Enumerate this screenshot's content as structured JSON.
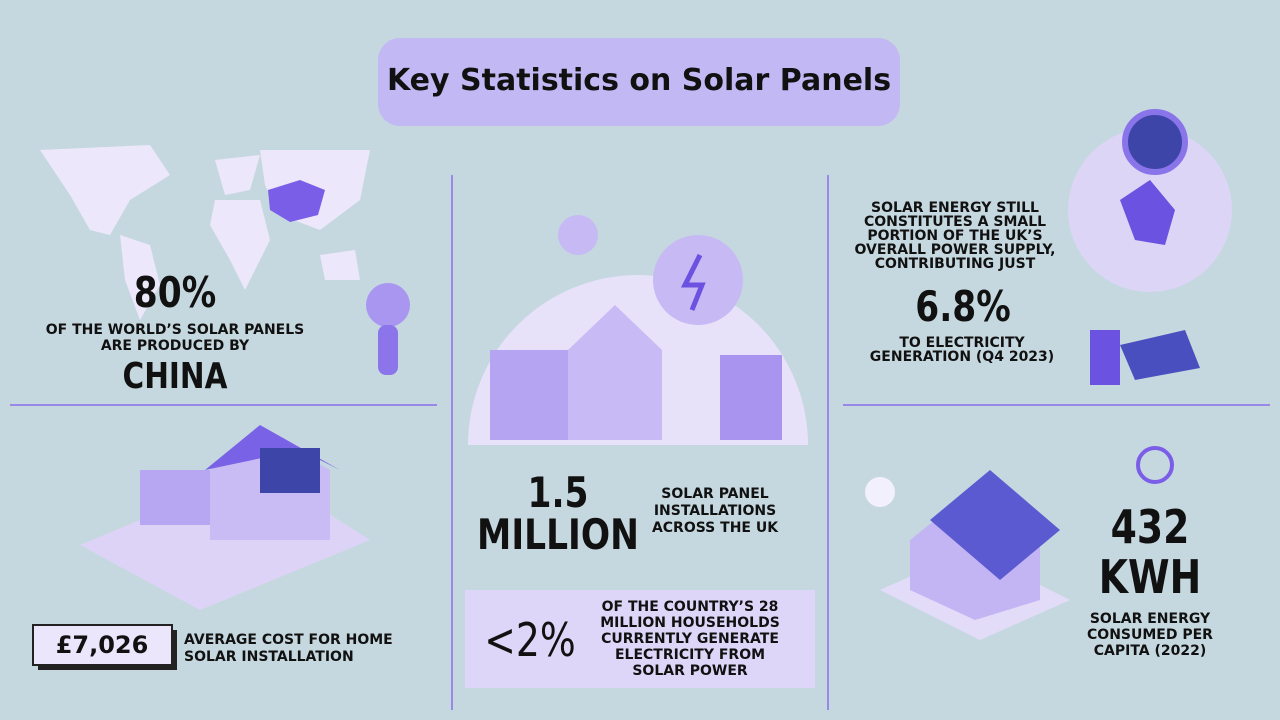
{
  "header": {
    "title": "Key Statistics on Solar Panels"
  },
  "china": {
    "value": "80%",
    "lines": [
      "OF THE WORLD’S SOLAR PANELS",
      "ARE PRODUCED BY"
    ],
    "country": "CHINA"
  },
  "cost": {
    "value": "£7,026",
    "lines": [
      "AVERAGE COST FOR HOME",
      "SOLAR INSTALLATION"
    ]
  },
  "installations": {
    "value_lines": [
      "1.5",
      "MILLION"
    ],
    "lines": [
      "SOLAR PANEL",
      "INSTALLATIONS",
      "ACROSS THE UK"
    ]
  },
  "households": {
    "value": "<2%",
    "lines": [
      "OF THE COUNTRY’S 28",
      "MILLION HOUSEHOLDS",
      "CURRENTLY GENERATE",
      "ELECTRICITY FROM",
      "SOLAR POWER"
    ]
  },
  "share": {
    "intro_lines": [
      "SOLAR ENERGY STILL",
      "CONSTITUTES A SMALL",
      "PORTION OF THE UK’S",
      "OVERALL POWER SUPPLY,",
      "CONTRIBUTING JUST"
    ],
    "value": "6.8%",
    "lines": [
      "TO ELECTRICITY",
      "GENERATION (Q4 2023)"
    ]
  },
  "consumption": {
    "value_lines": [
      "432",
      "KWH"
    ],
    "lines": [
      "SOLAR ENERGY",
      "CONSUMED PER",
      "CAPITA (2022)"
    ]
  }
}
